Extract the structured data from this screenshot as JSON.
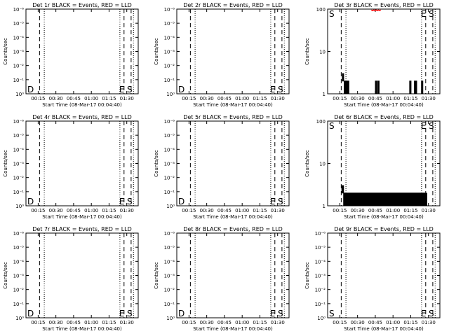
{
  "common": {
    "xlabel": "Start Time (08-Mar-17 00:04:40)",
    "ylabel": "Counts/sec",
    "x_tick_labels": [
      "00:15",
      "00:30",
      "00:45",
      "01:00",
      "01:15",
      "01:30"
    ],
    "colors": {
      "events": "#000000",
      "lld": "#ff0000"
    }
  },
  "chart_data": [
    {
      "type": "line",
      "title": "Det 1r BLACK = Events, RED = LLD",
      "scale": "log",
      "y_tick_labels": [
        "10⁻⁶",
        "10⁻⁵",
        "10⁻⁴",
        "10⁻³",
        "10⁻²",
        "10⁻¹",
        "10⁰"
      ],
      "markers": [
        "D",
        "E",
        "S"
      ],
      "events": [],
      "lld": []
    },
    {
      "type": "line",
      "title": "Det 2r BLACK = Events, RED = LLD",
      "scale": "log",
      "y_tick_labels": [
        "10⁻⁶",
        "10⁻⁵",
        "10⁻⁴",
        "10⁻³",
        "10⁻²",
        "10⁻¹",
        "10⁰"
      ],
      "markers": [
        "D",
        "E",
        "S"
      ],
      "events": [],
      "lld": []
    },
    {
      "type": "line",
      "title": "Det 3r BLACK = Events, RED = LLD",
      "scale": "log",
      "y_tick_labels": [
        "100",
        "10",
        "1"
      ],
      "markers": [
        "S",
        "E",
        "S"
      ],
      "events": [
        {
          "t": 12.0,
          "v": 2.0
        },
        {
          "t": 12.4,
          "v": 3.0
        },
        {
          "t": 12.8,
          "v": 2.0
        },
        {
          "t": 13.2,
          "v": 3.0
        },
        {
          "t": 13.6,
          "v": 2.0
        },
        {
          "t": 14.0,
          "v": 1.0
        },
        {
          "t": 14.4,
          "v": 2.0
        },
        {
          "t": 14.8,
          "v": 1.0
        },
        {
          "t": 15.2,
          "v": 2.0
        },
        {
          "t": 15.6,
          "v": 1.0
        },
        {
          "t": 16.0,
          "v": 2.0
        },
        {
          "t": 16.4,
          "v": 1.0
        },
        {
          "t": 16.8,
          "v": 2.0
        },
        {
          "t": 17.2,
          "v": 1.0
        },
        {
          "t": 17.6,
          "v": 2.0
        },
        {
          "t": 18.0,
          "v": 1.0
        },
        {
          "t": 40.0,
          "v": 1.0
        },
        {
          "t": 40.4,
          "v": 2.0
        },
        {
          "t": 40.8,
          "v": 1.0
        },
        {
          "t": 41.2,
          "v": 2.0
        },
        {
          "t": 41.6,
          "v": 1.0
        },
        {
          "t": 42.0,
          "v": 1.0
        },
        {
          "t": 42.4,
          "v": 2.0
        },
        {
          "t": 42.8,
          "v": 1.0
        },
        {
          "t": 43.2,
          "v": 2.0
        },
        {
          "t": 43.6,
          "v": 1.0
        },
        {
          "t": 69.0,
          "v": 1.0
        },
        {
          "t": 69.4,
          "v": 2.0
        },
        {
          "t": 69.8,
          "v": 1.0
        },
        {
          "t": 70.2,
          "v": 2.0
        },
        {
          "t": 70.6,
          "v": 1.0
        },
        {
          "t": 73.0,
          "v": 1.0
        },
        {
          "t": 73.4,
          "v": 2.0
        },
        {
          "t": 73.8,
          "v": 1.0
        },
        {
          "t": 74.2,
          "v": 2.0
        },
        {
          "t": 74.6,
          "v": 1.0
        },
        {
          "t": 75.0,
          "v": 2.0
        },
        {
          "t": 75.4,
          "v": 1.0
        },
        {
          "t": 79.0,
          "v": 1.0
        },
        {
          "t": 79.4,
          "v": 2.0
        },
        {
          "t": 79.8,
          "v": 1.0
        },
        {
          "t": 80.2,
          "v": 2.0
        },
        {
          "t": 80.6,
          "v": 1.0
        }
      ],
      "lld": [
        {
          "t": 37.0,
          "v": 95
        },
        {
          "t": 38.0,
          "v": 92
        },
        {
          "t": 39.0,
          "v": 95
        },
        {
          "t": 40.0,
          "v": 93
        },
        {
          "t": 41.0,
          "v": 96
        },
        {
          "t": 42.0,
          "v": 92
        },
        {
          "t": 43.0,
          "v": 95
        },
        {
          "t": 44.0,
          "v": 93
        },
        {
          "t": 45.0,
          "v": 95
        }
      ]
    },
    {
      "type": "line",
      "title": "Det 4r BLACK = Events, RED = LLD",
      "scale": "log",
      "y_tick_labels": [
        "10⁻⁶",
        "10⁻⁵",
        "10⁻⁴",
        "10⁻³",
        "10⁻²",
        "10⁻¹",
        "10⁰"
      ],
      "markers": [
        "D",
        "E",
        "S"
      ],
      "events": [],
      "lld": []
    },
    {
      "type": "line",
      "title": "Det 5r BLACK = Events, RED = LLD",
      "scale": "log",
      "y_tick_labels": [
        "10⁻⁶",
        "10⁻⁵",
        "10⁻⁴",
        "10⁻³",
        "10⁻²",
        "10⁻¹",
        "10⁰"
      ],
      "markers": [
        "D",
        "E",
        "S"
      ],
      "events": [],
      "lld": []
    },
    {
      "type": "line",
      "title": "Det 6r BLACK = Events, RED = LLD",
      "scale": "log",
      "y_tick_labels": [
        "100",
        "10",
        "1"
      ],
      "markers": [
        "S",
        "E",
        "S"
      ],
      "events": [
        {
          "t": 11.5,
          "v": 2.0
        },
        {
          "t": 12.0,
          "v": 3.0
        },
        {
          "t": 12.5,
          "v": 2.0
        },
        {
          "t": 13.0,
          "v": 3.0
        },
        {
          "t": 13.5,
          "v": 1.0
        },
        {
          "t": 14.0,
          "v": 2.0
        },
        {
          "t": 14.5,
          "v": 1.0
        },
        {
          "t": 15.0,
          "v": 2.0
        },
        {
          "t": 15.5,
          "v": 1.0
        },
        {
          "t": 16.0,
          "v": 2.0
        },
        {
          "t": 16.5,
          "v": 1.0
        },
        {
          "t": 17.0,
          "v": 2.0
        },
        {
          "t": 17.5,
          "v": 1.0
        },
        {
          "t": 18.0,
          "v": 2.0
        },
        {
          "t": 18.5,
          "v": 1.0
        },
        {
          "t": 19.0,
          "v": 2.0
        },
        {
          "t": 19.5,
          "v": 1.0
        },
        {
          "t": 20.0,
          "v": 2.0
        },
        {
          "t": 20.5,
          "v": 1.0
        },
        {
          "t": 21.0,
          "v": 2.0
        },
        {
          "t": 21.5,
          "v": 1.0
        },
        {
          "t": 22.0,
          "v": 2.0
        },
        {
          "t": 22.5,
          "v": 1.0
        },
        {
          "t": 23.0,
          "v": 2.0
        },
        {
          "t": 23.5,
          "v": 1.0
        },
        {
          "t": 24.0,
          "v": 2.0
        },
        {
          "t": 24.5,
          "v": 1.0
        },
        {
          "t": 25.0,
          "v": 2.0
        },
        {
          "t": 25.5,
          "v": 1.0
        },
        {
          "t": 26.0,
          "v": 2.0
        },
        {
          "t": 26.5,
          "v": 1.0
        },
        {
          "t": 27.0,
          "v": 2.0
        },
        {
          "t": 27.5,
          "v": 1.0
        },
        {
          "t": 28.0,
          "v": 2.0
        },
        {
          "t": 28.5,
          "v": 1.0
        },
        {
          "t": 29.0,
          "v": 2.0
        },
        {
          "t": 29.5,
          "v": 1.0
        },
        {
          "t": 30.0,
          "v": 2.0
        },
        {
          "t": 30.5,
          "v": 1.0
        },
        {
          "t": 31.0,
          "v": 2.0
        },
        {
          "t": 31.5,
          "v": 1.0
        },
        {
          "t": 32.0,
          "v": 2.0
        },
        {
          "t": 32.5,
          "v": 1.0
        },
        {
          "t": 33.0,
          "v": 2.0
        },
        {
          "t": 33.5,
          "v": 1.0
        },
        {
          "t": 34.0,
          "v": 2.0
        },
        {
          "t": 34.5,
          "v": 1.0
        },
        {
          "t": 35.0,
          "v": 2.0
        },
        {
          "t": 35.5,
          "v": 1.0
        },
        {
          "t": 36.0,
          "v": 2.0
        },
        {
          "t": 36.5,
          "v": 1.0
        },
        {
          "t": 37.0,
          "v": 2.0
        },
        {
          "t": 37.5,
          "v": 1.0
        },
        {
          "t": 38.0,
          "v": 2.0
        },
        {
          "t": 38.5,
          "v": 1.0
        },
        {
          "t": 39.0,
          "v": 2.0
        },
        {
          "t": 39.5,
          "v": 1.0
        },
        {
          "t": 40.0,
          "v": 2.0
        },
        {
          "t": 40.5,
          "v": 1.0
        },
        {
          "t": 41.0,
          "v": 2.0
        },
        {
          "t": 41.5,
          "v": 1.0
        },
        {
          "t": 42.0,
          "v": 2.0
        },
        {
          "t": 42.5,
          "v": 1.0
        },
        {
          "t": 43.0,
          "v": 2.0
        },
        {
          "t": 43.5,
          "v": 1.0
        },
        {
          "t": 44.0,
          "v": 2.0
        },
        {
          "t": 44.5,
          "v": 1.0
        },
        {
          "t": 45.0,
          "v": 2.0
        },
        {
          "t": 45.5,
          "v": 1.0
        },
        {
          "t": 46.0,
          "v": 2.0
        },
        {
          "t": 46.5,
          "v": 1.0
        },
        {
          "t": 47.0,
          "v": 2.0
        },
        {
          "t": 47.5,
          "v": 1.0
        },
        {
          "t": 48.0,
          "v": 2.0
        },
        {
          "t": 48.5,
          "v": 1.0
        },
        {
          "t": 49.0,
          "v": 2.0
        },
        {
          "t": 49.5,
          "v": 1.0
        },
        {
          "t": 50.0,
          "v": 2.0
        },
        {
          "t": 50.5,
          "v": 1.0
        },
        {
          "t": 51.0,
          "v": 2.0
        },
        {
          "t": 51.5,
          "v": 1.0
        },
        {
          "t": 52.0,
          "v": 2.0
        },
        {
          "t": 52.5,
          "v": 1.0
        },
        {
          "t": 53.0,
          "v": 2.0
        },
        {
          "t": 53.5,
          "v": 1.0
        },
        {
          "t": 54.0,
          "v": 2.0
        },
        {
          "t": 54.5,
          "v": 1.0
        },
        {
          "t": 55.0,
          "v": 2.0
        },
        {
          "t": 55.5,
          "v": 1.0
        },
        {
          "t": 56.0,
          "v": 2.0
        },
        {
          "t": 56.5,
          "v": 1.0
        },
        {
          "t": 57.0,
          "v": 2.0
        },
        {
          "t": 57.5,
          "v": 1.0
        },
        {
          "t": 58.0,
          "v": 2.0
        },
        {
          "t": 58.5,
          "v": 1.0
        },
        {
          "t": 59.0,
          "v": 2.0
        },
        {
          "t": 59.5,
          "v": 1.0
        },
        {
          "t": 60.0,
          "v": 2.0
        },
        {
          "t": 60.5,
          "v": 1.0
        },
        {
          "t": 61.0,
          "v": 2.0
        },
        {
          "t": 61.5,
          "v": 1.0
        },
        {
          "t": 62.0,
          "v": 2.0
        },
        {
          "t": 62.5,
          "v": 1.0
        },
        {
          "t": 63.0,
          "v": 2.0
        },
        {
          "t": 63.5,
          "v": 1.0
        },
        {
          "t": 64.0,
          "v": 2.0
        },
        {
          "t": 64.5,
          "v": 1.0
        },
        {
          "t": 65.0,
          "v": 2.0
        },
        {
          "t": 65.5,
          "v": 1.0
        },
        {
          "t": 66.0,
          "v": 2.0
        },
        {
          "t": 66.5,
          "v": 1.0
        },
        {
          "t": 67.0,
          "v": 2.0
        },
        {
          "t": 67.5,
          "v": 1.0
        },
        {
          "t": 68.0,
          "v": 2.0
        },
        {
          "t": 68.5,
          "v": 1.0
        },
        {
          "t": 69.0,
          "v": 2.0
        },
        {
          "t": 69.5,
          "v": 1.0
        },
        {
          "t": 70.0,
          "v": 2.0
        },
        {
          "t": 70.5,
          "v": 1.0
        },
        {
          "t": 71.0,
          "v": 2.0
        },
        {
          "t": 71.5,
          "v": 1.0
        },
        {
          "t": 72.0,
          "v": 2.0
        },
        {
          "t": 72.5,
          "v": 1.0
        },
        {
          "t": 73.0,
          "v": 2.0
        },
        {
          "t": 73.5,
          "v": 1.0
        },
        {
          "t": 74.0,
          "v": 2.0
        },
        {
          "t": 74.5,
          "v": 1.0
        },
        {
          "t": 75.0,
          "v": 2.0
        },
        {
          "t": 75.5,
          "v": 1.0
        },
        {
          "t": 76.0,
          "v": 2.0
        },
        {
          "t": 76.5,
          "v": 1.0
        },
        {
          "t": 77.0,
          "v": 2.0
        },
        {
          "t": 77.5,
          "v": 1.0
        },
        {
          "t": 78.0,
          "v": 2.0
        },
        {
          "t": 78.5,
          "v": 1.0
        },
        {
          "t": 79.0,
          "v": 2.0
        },
        {
          "t": 79.5,
          "v": 1.0
        },
        {
          "t": 80.0,
          "v": 2.0
        },
        {
          "t": 80.5,
          "v": 1.0
        },
        {
          "t": 81.0,
          "v": 2.0
        },
        {
          "t": 81.5,
          "v": 1.0
        },
        {
          "t": 82.0,
          "v": 2.0
        },
        {
          "t": 82.5,
          "v": 1.0
        },
        {
          "t": 83.0,
          "v": 2.0
        },
        {
          "t": 83.5,
          "v": 1.0
        },
        {
          "t": 84.0,
          "v": 2.0
        }
      ],
      "lld": []
    },
    {
      "type": "line",
      "title": "Det 7r BLACK = Events, RED = LLD",
      "scale": "log",
      "y_tick_labels": [
        "10⁻⁶",
        "10⁻⁵",
        "10⁻⁴",
        "10⁻³",
        "10⁻²",
        "10⁻¹",
        "10⁰"
      ],
      "markers": [
        "D",
        "E",
        "S"
      ],
      "events": [],
      "lld": []
    },
    {
      "type": "line",
      "title": "Det 8r BLACK = Events, RED = LLD",
      "scale": "log",
      "y_tick_labels": [
        "10⁻⁶",
        "10⁻⁵",
        "10⁻⁴",
        "10⁻³",
        "10⁻²",
        "10⁻¹",
        "10⁰"
      ],
      "markers": [
        "D",
        "E",
        "S"
      ],
      "events": [],
      "lld": []
    },
    {
      "type": "line",
      "title": "Det 9r BLACK = Events, RED = LLD",
      "scale": "log",
      "y_tick_labels": [
        "10⁻⁶",
        "10⁻⁵",
        "10⁻⁴",
        "10⁻³",
        "10⁻²",
        "10⁻¹",
        "10⁰"
      ],
      "markers": [
        "S",
        "E",
        "S"
      ],
      "events": [],
      "lld": []
    }
  ]
}
